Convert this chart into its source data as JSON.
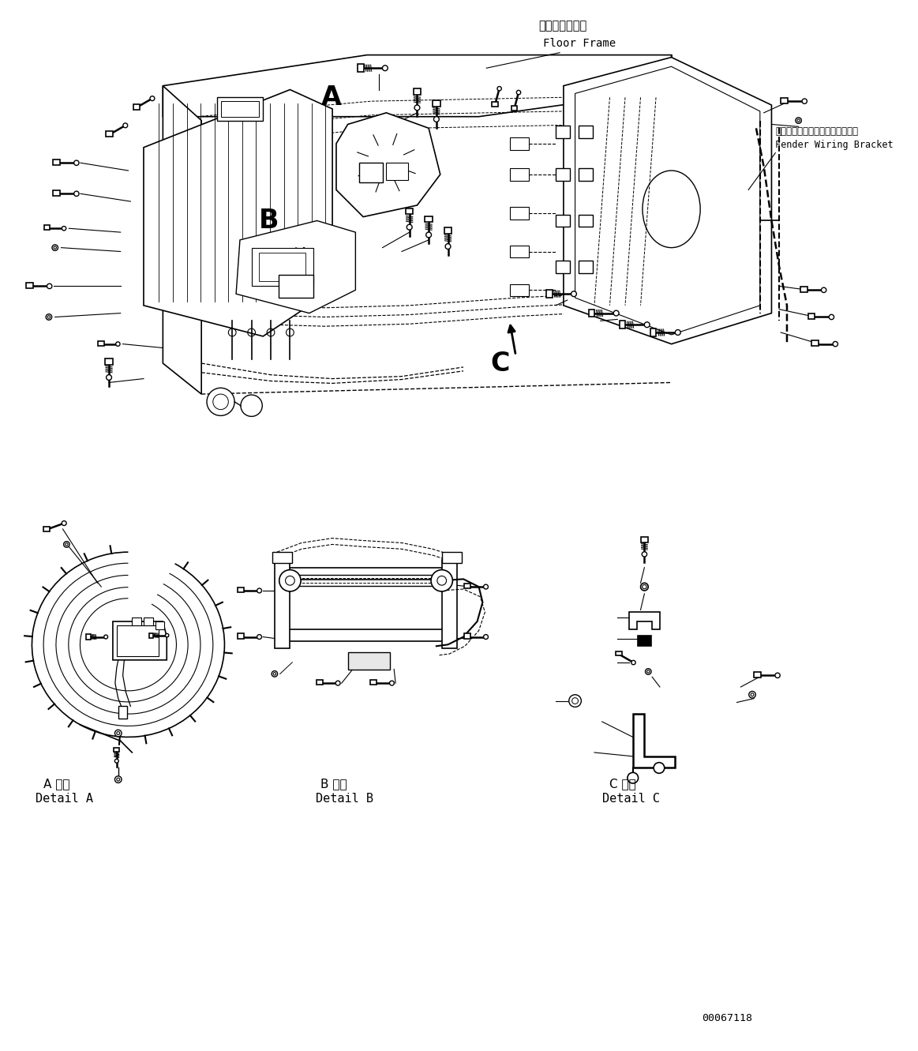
{
  "bg_color": "#ffffff",
  "line_color": "#000000",
  "title_label1": "フロアフレーム",
  "title_label2": "Floor Frame",
  "label_fender1": "フェンダワイヤリングブラケット",
  "label_fender2": "Fender Wiring Bracket",
  "label_A": "A",
  "label_B": "B",
  "label_C": "C",
  "detail_A1": "A 詳細",
  "detail_A2": "Detail A",
  "detail_B1": "B 詳細",
  "detail_B2": "Detail B",
  "detail_C1": "C 詳細",
  "detail_C2": "Detail C",
  "part_number": "00067118",
  "fig_width": 11.63,
  "fig_height": 13.31,
  "dpi": 100
}
